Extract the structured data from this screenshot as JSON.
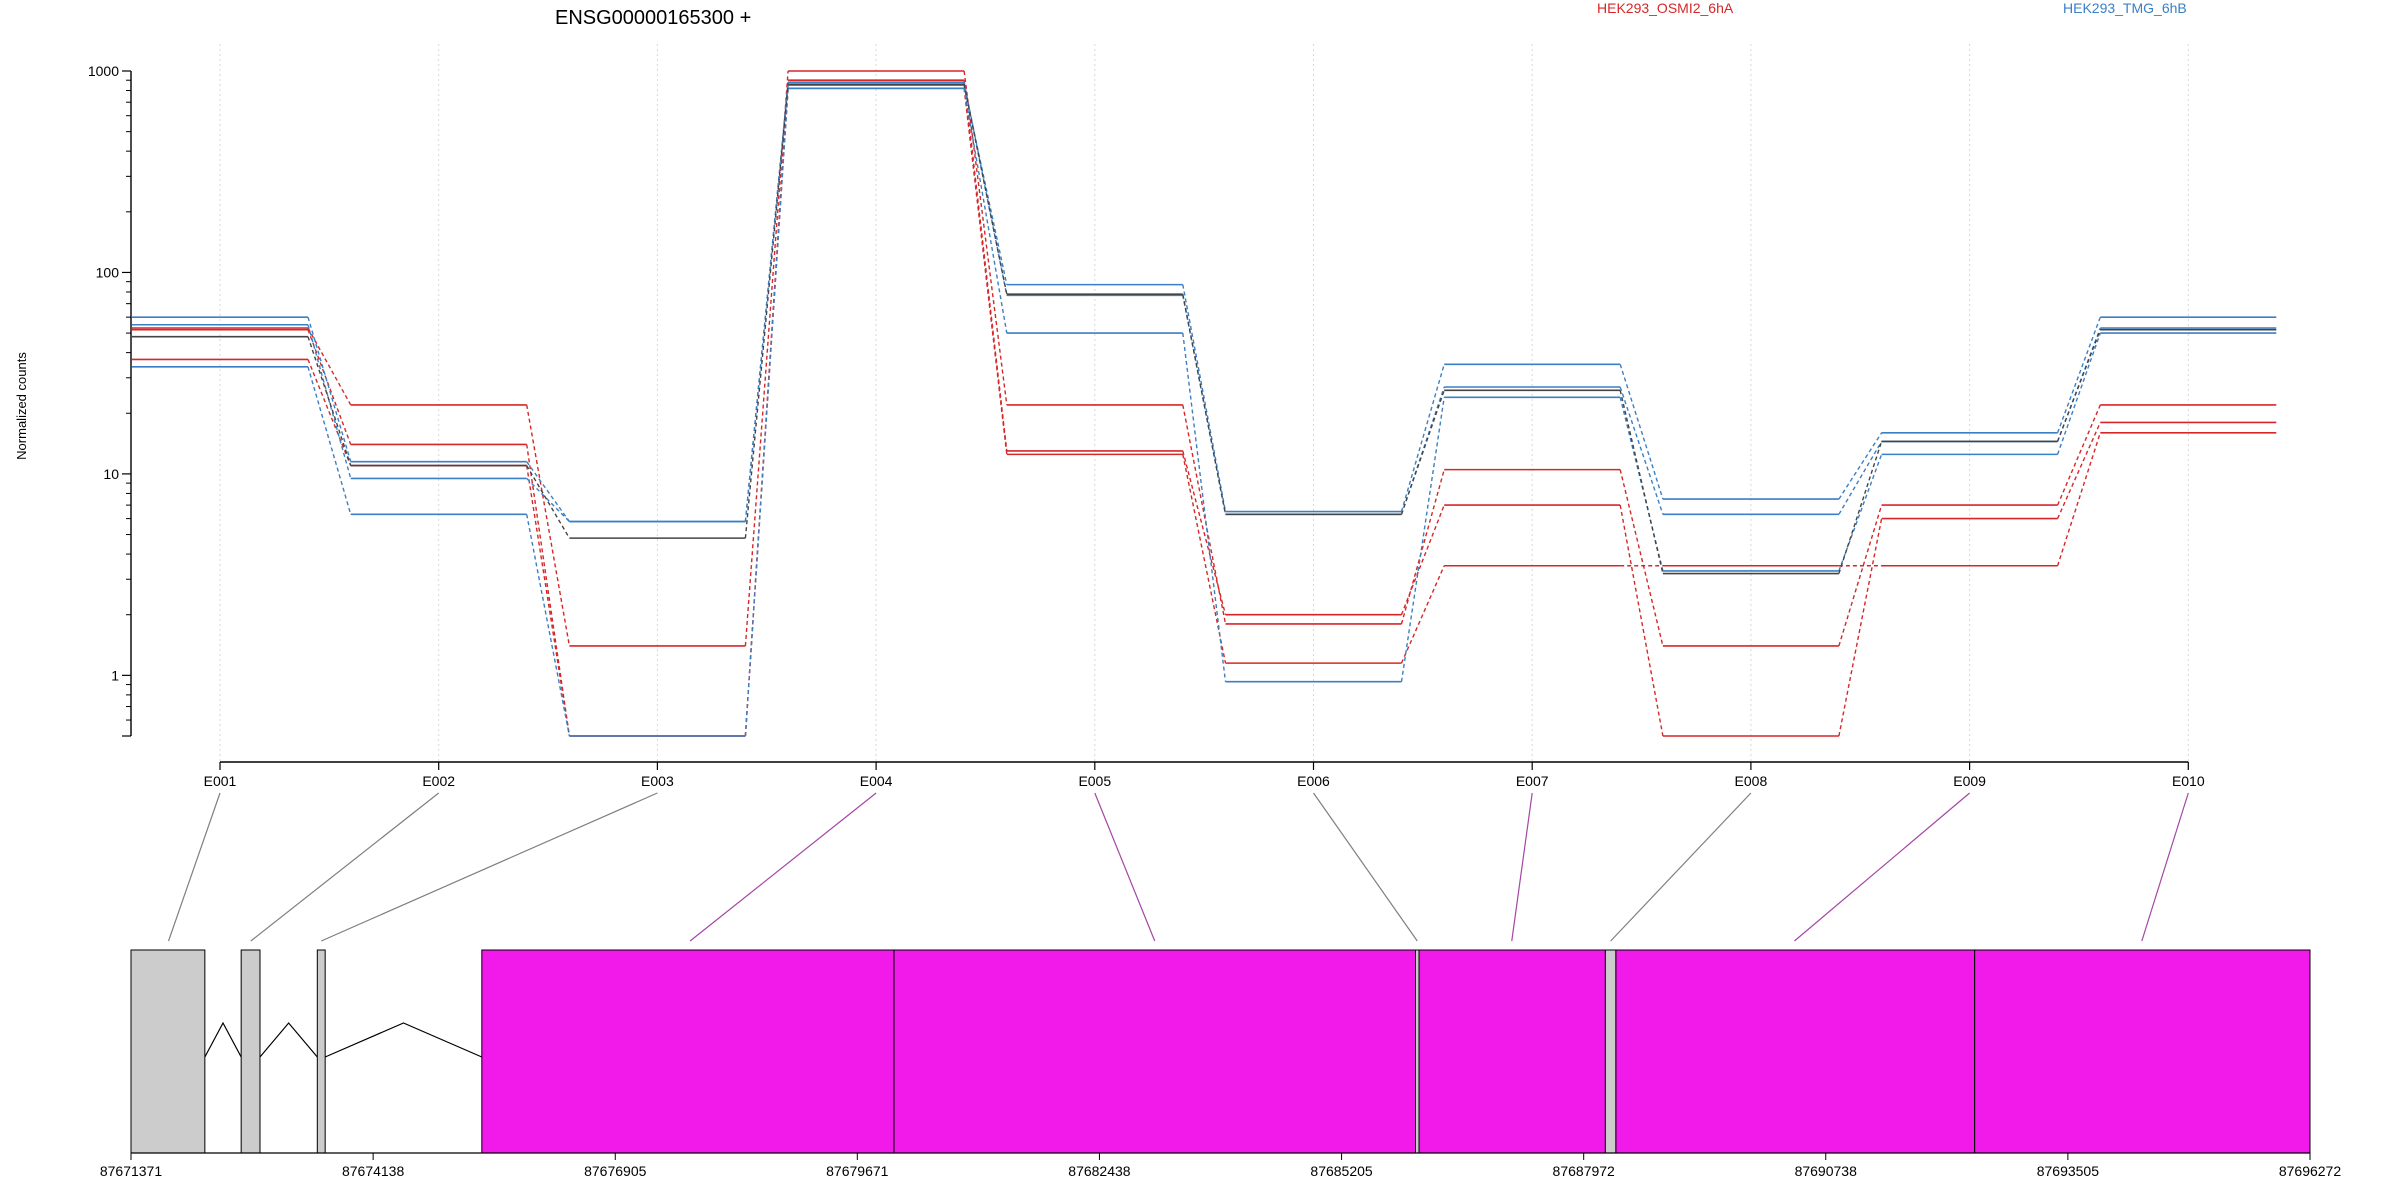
{
  "chart_data": {
    "type": "line",
    "title": "ENSG00000165300 +",
    "ylabel": "Normalized counts",
    "xlabel": "",
    "y_scale": "log",
    "ylim": [
      0.5,
      1000
    ],
    "y_ticks": [
      1,
      10,
      100,
      1000
    ],
    "y_tick_labels": [
      "1",
      "10",
      "100",
      "1000"
    ],
    "grid": "vertical dotted at each exon",
    "legend_placement": "top",
    "colors": {
      "HEK293_OSMI2_6hA": "#d62728",
      "HEK293_TMG_6hB": "#3b7fc4",
      "other": "#444444"
    },
    "categories": [
      "E001",
      "E002",
      "E003",
      "E004",
      "E005",
      "E006",
      "E007",
      "E008",
      "E009",
      "E010"
    ],
    "legend": [
      {
        "label": "HEK293_OSMI2_6hA",
        "color": "#d62728"
      },
      {
        "label": "HEK293_TMG_6hB",
        "color": "#3b7fc4"
      }
    ],
    "series": [
      {
        "group": "HEK293_OSMI2_6hA",
        "color": "#d62728",
        "values": [
          53,
          22,
          1.4,
          1000,
          22,
          1.8,
          10.5,
          1.4,
          7,
          22
        ]
      },
      {
        "group": "HEK293_OSMI2_6hA",
        "color": "#d62728",
        "values": [
          52,
          14,
          0.5,
          900,
          13,
          2.0,
          7,
          0.5,
          6,
          18
        ]
      },
      {
        "group": "HEK293_OSMI2_6hA",
        "color": "#d62728",
        "values": [
          37,
          11,
          0.5,
          820,
          12.5,
          1.15,
          3.5,
          3.5,
          3.5,
          16
        ]
      },
      {
        "group": "HEK293_TMG_6hB",
        "color": "#3b7fc4",
        "values": [
          60,
          11.5,
          5.8,
          850,
          87,
          6.5,
          35,
          7.5,
          16,
          60
        ]
      },
      {
        "group": "HEK293_TMG_6hB",
        "color": "#3b7fc4",
        "values": [
          55,
          9.5,
          5.8,
          880,
          77,
          6.3,
          27,
          6.3,
          14.5,
          53
        ]
      },
      {
        "group": "HEK293_TMG_6hB",
        "color": "#3b7fc4",
        "values": [
          34,
          6.3,
          0.5,
          820,
          50,
          0.93,
          24,
          3.3,
          12.5,
          50
        ]
      },
      {
        "group": "",
        "color": "#444444",
        "values": [
          48,
          11,
          4.8,
          860,
          78,
          6.3,
          26,
          3.2,
          14.5,
          52
        ]
      }
    ],
    "gene_model": {
      "x_ticks": [
        "87671371",
        "87674138",
        "87676905",
        "87679671",
        "87682438",
        "87685205",
        "87687972",
        "87690738",
        "87693505",
        "87696272"
      ],
      "x_range": [
        87671371,
        87696272
      ],
      "exons": [
        {
          "start": 87671371,
          "end": 87672215,
          "color": "#cccccc"
        },
        {
          "start": 87672630,
          "end": 87672845,
          "color": "#cccccc"
        },
        {
          "start": 87673500,
          "end": 87673590,
          "color": "#cccccc"
        },
        {
          "start": 87675380,
          "end": 87680090,
          "color": "#f21aea"
        },
        {
          "start": 87680090,
          "end": 87686050,
          "color": "#f21aea"
        },
        {
          "start": 87686050,
          "end": 87686090,
          "color": "#cccccc"
        },
        {
          "start": 87686090,
          "end": 87688220,
          "color": "#f21aea"
        },
        {
          "start": 87688220,
          "end": 87688340,
          "color": "#cccccc"
        },
        {
          "start": 87688340,
          "end": 87692440,
          "color": "#f21aea"
        },
        {
          "start": 87692440,
          "end": 87696272,
          "color": "#f21aea"
        }
      ],
      "introns": [
        {
          "start": 87672215,
          "end": 87672630
        },
        {
          "start": 87672845,
          "end": 87673500
        },
        {
          "start": 87673590,
          "end": 87675380
        }
      ],
      "exon_links": [
        {
          "exon": "E001",
          "position": 87671800,
          "color": "#7f7f7f"
        },
        {
          "exon": "E002",
          "position": 87672740,
          "color": "#7f7f7f"
        },
        {
          "exon": "E003",
          "position": 87673545,
          "color": "#7f7f7f"
        },
        {
          "exon": "E004",
          "position": 87677760,
          "color": "#a347a3"
        },
        {
          "exon": "E005",
          "position": 87683070,
          "color": "#a347a3"
        },
        {
          "exon": "E006",
          "position": 87686070,
          "color": "#7f7f7f"
        },
        {
          "exon": "E007",
          "position": 87687150,
          "color": "#a347a3"
        },
        {
          "exon": "E008",
          "position": 87688280,
          "color": "#7f7f7f"
        },
        {
          "exon": "E009",
          "position": 87690380,
          "color": "#a347a3"
        },
        {
          "exon": "E010",
          "position": 87694350,
          "color": "#a347a3"
        }
      ]
    }
  }
}
